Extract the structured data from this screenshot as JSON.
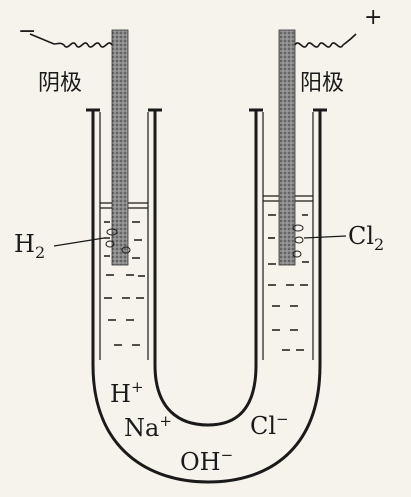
{
  "diagram": {
    "left_electrode": {
      "sign": "−",
      "label": "阴极",
      "gas_label": "H",
      "gas_sub": "2"
    },
    "right_electrode": {
      "sign": "+",
      "label": "阳极",
      "gas_label": "Cl",
      "gas_sub": "2"
    },
    "ions": {
      "h_plus": {
        "text": "H",
        "charge": "+"
      },
      "na_plus": {
        "text": "Na",
        "charge": "+"
      },
      "oh_minus": {
        "text": "OH",
        "charge": "−"
      },
      "cl_minus": {
        "text": "Cl",
        "charge": "−"
      }
    },
    "colors": {
      "ink": "#1a1a1a",
      "paper": "#f6f3ec",
      "electrode": "#7a7a7a"
    }
  }
}
